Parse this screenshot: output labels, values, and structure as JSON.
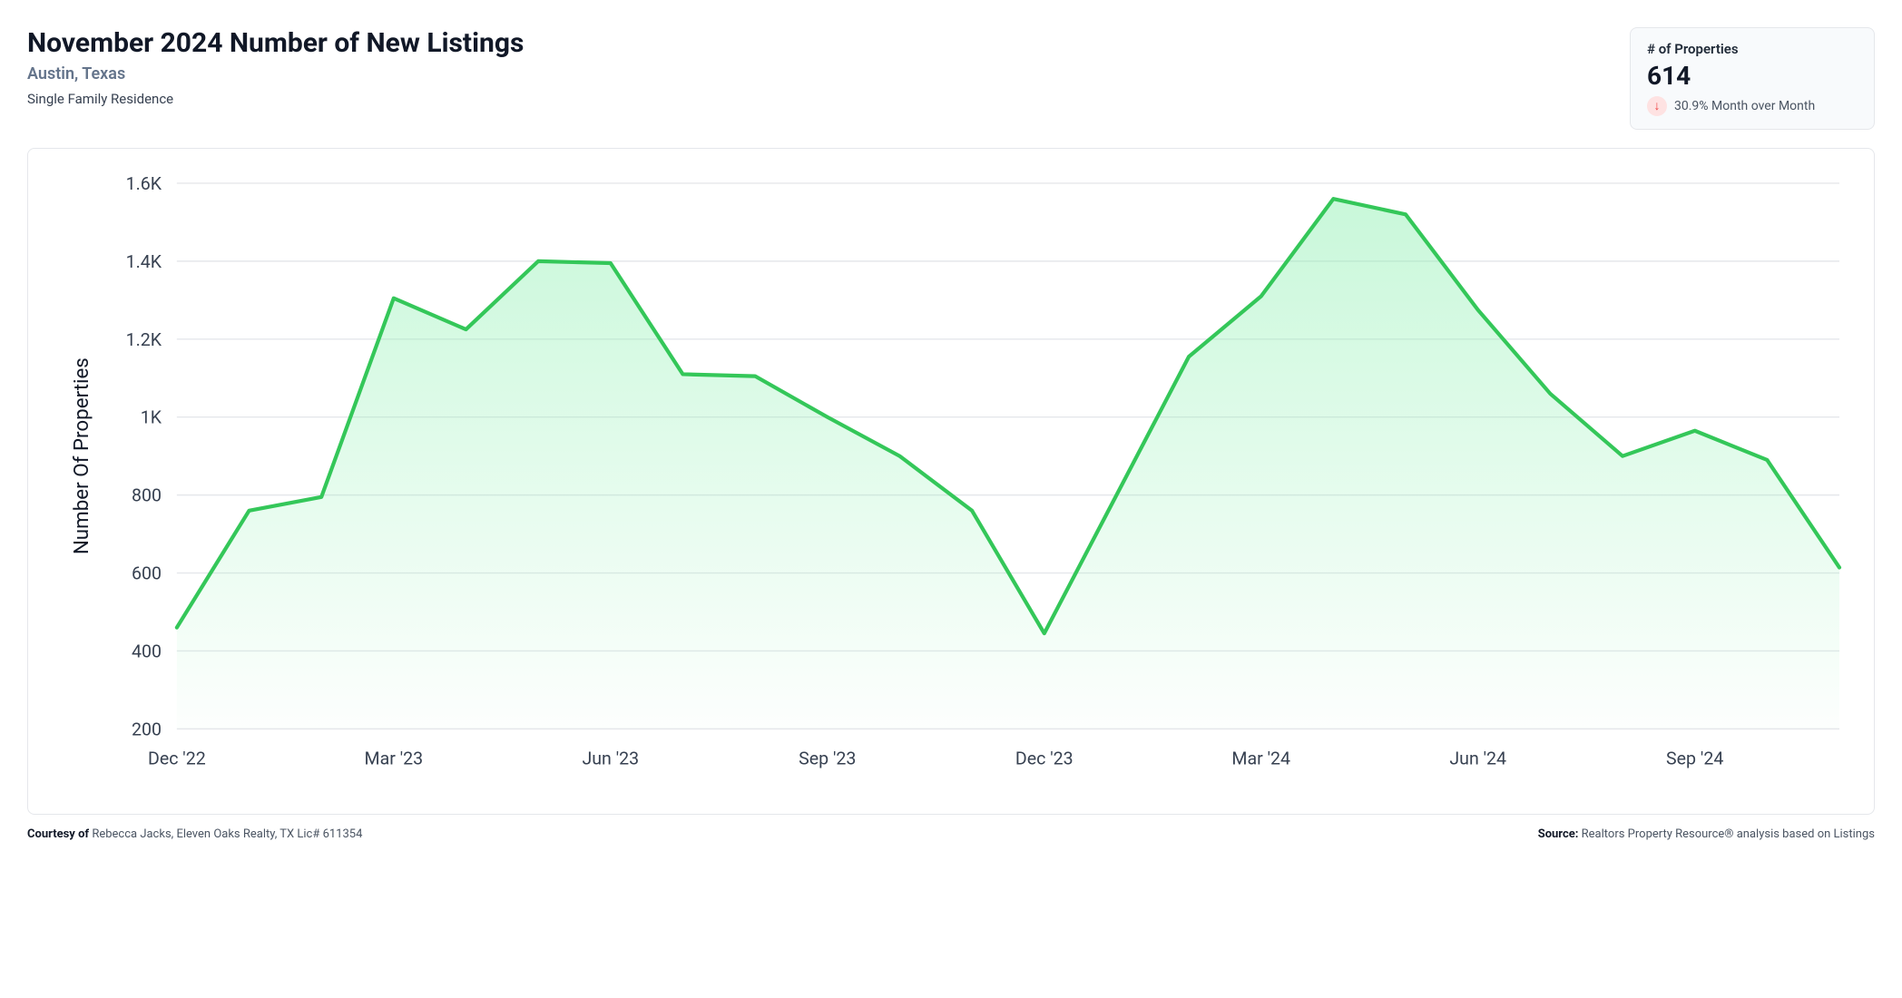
{
  "header": {
    "title": "November 2024 Number of New Listings",
    "location": "Austin, Texas",
    "property_type": "Single Family Residence"
  },
  "stat_card": {
    "label": "# of Properties",
    "value": "614",
    "delta_text": "30.9% Month over Month",
    "delta_direction": "down",
    "arrow_bg": "#fee2e2",
    "arrow_color": "#ef4444"
  },
  "chart": {
    "type": "area",
    "y_axis_label": "Number Of Properties",
    "ylim": [
      200,
      1600
    ],
    "ytick_step": 200,
    "ytick_labels": [
      "200",
      "400",
      "600",
      "800",
      "1K",
      "1.2K",
      "1.4K",
      "1.6K"
    ],
    "x_labels": [
      "Dec '22",
      "Mar '23",
      "Jun '23",
      "Sep '23",
      "Dec '23",
      "Mar '24",
      "Jun '24",
      "Sep '24"
    ],
    "x_label_every": 3,
    "months": [
      "Dec '22",
      "Jan '23",
      "Feb '23",
      "Mar '23",
      "Apr '23",
      "May '23",
      "Jun '23",
      "Jul '23",
      "Aug '23",
      "Sep '23",
      "Oct '23",
      "Nov '23",
      "Dec '23",
      "Jan '24",
      "Feb '24",
      "Mar '24",
      "Apr '24",
      "May '24",
      "Jun '24",
      "Jul '24",
      "Aug '24",
      "Sep '24",
      "Oct '24",
      "Nov '24"
    ],
    "values": [
      460,
      760,
      795,
      1305,
      1225,
      1400,
      1395,
      1110,
      1105,
      1000,
      900,
      760,
      445,
      800,
      1155,
      1310,
      1560,
      1520,
      1275,
      1060,
      900,
      965,
      890,
      614
    ],
    "line_color": "#34c759",
    "line_width": 3,
    "fill_top": "rgba(134,239,172,0.45)",
    "fill_bottom": "rgba(134,239,172,0.02)",
    "grid_color": "#e5e7eb",
    "axis_text_color": "#374151",
    "background_color": "#ffffff",
    "tick_fontsize": 14,
    "axis_label_fontsize": 16
  },
  "footer": {
    "courtesy_label": "Courtesy of",
    "courtesy_text": "Rebecca Jacks, Eleven Oaks Realty, TX Lic# 611354",
    "source_label": "Source:",
    "source_text": "Realtors Property Resource® analysis based on Listings"
  }
}
